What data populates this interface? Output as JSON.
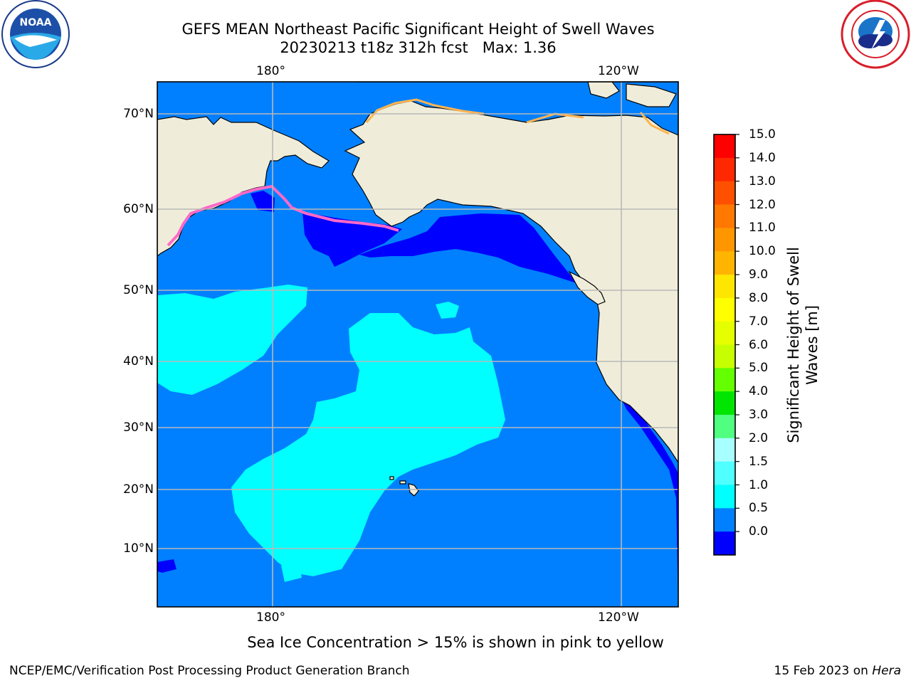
{
  "header": {
    "title_line1": "GEFS MEAN Northeast Pacific Significant Height of Swell Waves",
    "title_line2": "20230213 t18z 312h fcst   Max: 1.36"
  },
  "logos": {
    "left_logo_text": "NOAA",
    "right_logo_text": "NATIONAL WEATHER SERVICE"
  },
  "map": {
    "lon_labels": [
      "180°",
      "120°W"
    ],
    "lat_labels": [
      "70°N",
      "60°N",
      "50°N",
      "40°N",
      "30°N",
      "20°N",
      "10°N"
    ],
    "land_color": "#efedda",
    "ocean_color": "#0080ff",
    "grid_color": "#b8b8b8"
  },
  "colorbar": {
    "title": "Significant Height of Swell\nWaves [m]",
    "ticks": [
      "15.0",
      "14.0",
      "13.0",
      "12.0",
      "11.0",
      "10.0",
      "9.0",
      "8.0",
      "7.0",
      "6.0",
      "5.0",
      "4.0",
      "3.0",
      "2.0",
      "1.5",
      "1.0",
      "0.5",
      "0.0"
    ],
    "colors_top_to_bottom": [
      "#ff0000",
      "#ff2800",
      "#ff5000",
      "#ff7800",
      "#ff9600",
      "#ffb400",
      "#ffe600",
      "#ffff00",
      "#e6ff00",
      "#c8ff00",
      "#64ff00",
      "#00e600",
      "#50ff80",
      "#a8ffff",
      "#50ffff",
      "#00ffff",
      "#0080ff",
      "#0000ff"
    ]
  },
  "notes": {
    "sea_ice": "Sea Ice Concentration > 15% is shown in pink to yellow"
  },
  "footer": {
    "left": "NCEP/EMC/Verification Post Processing Product Generation Branch",
    "right_prefix": "15 Feb 2023 on ",
    "right_host": "Hera"
  }
}
